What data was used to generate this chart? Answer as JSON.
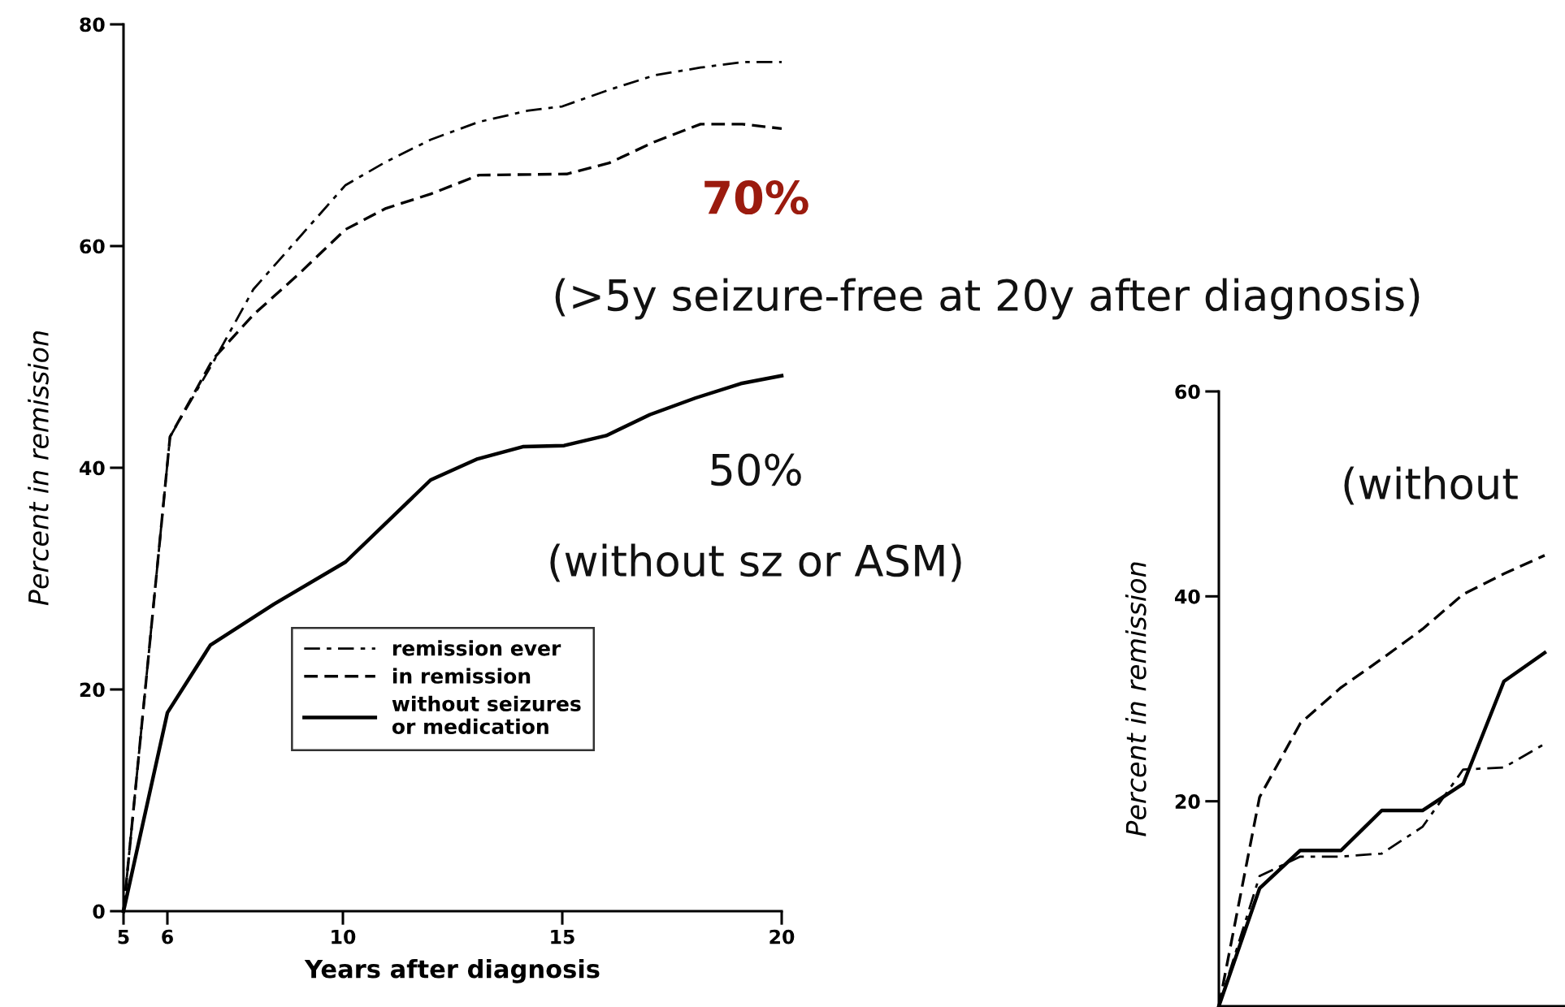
{
  "chart_data": [
    {
      "type": "line",
      "xlabel": "Years after diagnosis",
      "ylabel": "Percent in remission",
      "xlim": [
        5,
        20
      ],
      "xticks": [
        5,
        6,
        10,
        15,
        20
      ],
      "ylim": [
        0,
        80
      ],
      "yticks": [
        0,
        20,
        40,
        60,
        80
      ],
      "grid": false,
      "legend": "lower right",
      "marker": "none",
      "series": [
        {
          "name": "remission ever",
          "color": "#000000",
          "line_style": "dashdot",
          "x": [
            5,
            6.06,
            7.04,
            7.96,
            10.06,
            10.98,
            12.0,
            13.1,
            14.2,
            15.0,
            16.07,
            17.1,
            18.15,
            19.1,
            20
          ],
          "values": [
            0,
            42.8,
            49.5,
            56.1,
            65.5,
            67.6,
            69.6,
            71.2,
            72.2,
            72.6,
            74.1,
            75.4,
            76.1,
            76.6,
            76.6
          ]
        },
        {
          "name": "in remission",
          "color": "#000000",
          "line_style": "dashed",
          "x": [
            5,
            6.06,
            7.04,
            7.96,
            9.0,
            10.06,
            10.98,
            12.0,
            13.1,
            15.1,
            16.07,
            17.1,
            18.15,
            19.1,
            20
          ],
          "values": [
            0,
            42.8,
            49.8,
            53.8,
            57.5,
            61.5,
            63.4,
            64.7,
            66.4,
            66.5,
            67.5,
            69.4,
            71.0,
            71.0,
            70.6
          ]
        },
        {
          "name": "without seizures\nor medication",
          "color": "#000000",
          "line_style": "solid",
          "x": [
            5,
            6.0,
            6.98,
            8.43,
            10.06,
            12.0,
            13.07,
            14.1,
            15.04,
            16.0,
            17.0,
            18.04,
            19.07,
            20
          ],
          "values": [
            0,
            17.9,
            24.0,
            27.7,
            31.5,
            38.9,
            40.8,
            41.9,
            42.0,
            42.9,
            44.8,
            46.3,
            47.6,
            48.3
          ]
        }
      ],
      "annotations": [
        "70%",
        "(>5y seizure-free at 20y after diagnosis)",
        "50%",
        "(without sz or ASM)"
      ]
    },
    {
      "type": "line",
      "ylabel": "Percent in remission",
      "tick_labels": "y",
      "categories": [
        null,
        null,
        null,
        null,
        null,
        null,
        null,
        null,
        null
      ],
      "ylim": [
        0,
        60
      ],
      "yticks": [
        20,
        40,
        60
      ],
      "grid": false,
      "marker": "none",
      "series": [
        {
          "color": "#000000",
          "line_style": "dashed",
          "values": [
            0,
            20.4,
            27.6,
            31.1,
            33.9,
            36.8,
            40.2,
            42.2,
            44.0
          ]
        },
        {
          "color": "#000000",
          "line_style": "solid",
          "values": [
            0,
            11.5,
            15.2,
            15.2,
            19.1,
            19.1,
            21.7,
            31.7,
            34.5
          ]
        },
        {
          "color": "#000000",
          "line_style": "dashdot",
          "values": [
            0,
            12.7,
            14.6,
            14.6,
            14.9,
            17.5,
            23.1,
            23.3,
            25.6
          ]
        }
      ],
      "annotations": [
        "(without"
      ]
    }
  ]
}
